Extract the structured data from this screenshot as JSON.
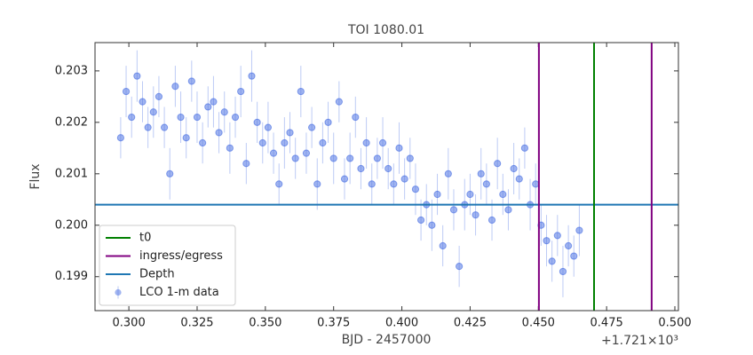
{
  "chart_data": {
    "type": "scatter",
    "title": "TOI 1080.01",
    "xlabel": "BJD - 2457000",
    "ylabel": "Flux",
    "x_offset_label": "+1.721×10³",
    "xlim": [
      0.2876,
      0.5013
    ],
    "xticks": [
      {
        "value": 0.3,
        "label": "0.300"
      },
      0.325,
      {
        "value": 0.35,
        "label": "0.350"
      },
      0.375,
      {
        "value": 0.4,
        "label": "0.400"
      },
      0.425,
      {
        "value": 0.45,
        "label": "0.450"
      },
      0.475,
      {
        "value": 0.5,
        "label": "0.500"
      }
    ],
    "ylim": [
      0.19834,
      0.20355
    ],
    "yticks": [
      0.199,
      {
        "value": 0.2,
        "label": "0.200"
      },
      0.201,
      0.202,
      0.203
    ],
    "legend": "lower left",
    "vlines": [
      {
        "name": "t0",
        "color": "#008000",
        "x": [
          0.4704
        ]
      },
      {
        "name": "ingress/egress",
        "color": "#800080",
        "x": [
          0.4502,
          0.4915
        ]
      }
    ],
    "hlines": [
      {
        "name": "Depth",
        "color": "#1f77b4",
        "y": [
          0.2004
        ]
      }
    ],
    "series": [
      {
        "name": "LCO 1-m data",
        "color": "#4169e1",
        "x": [
          0.297,
          0.299,
          0.301,
          0.303,
          0.305,
          0.307,
          0.309,
          0.311,
          0.313,
          0.315,
          0.317,
          0.319,
          0.321,
          0.323,
          0.325,
          0.327,
          0.329,
          0.331,
          0.333,
          0.335,
          0.337,
          0.339,
          0.341,
          0.343,
          0.345,
          0.347,
          0.349,
          0.351,
          0.353,
          0.355,
          0.357,
          0.359,
          0.361,
          0.363,
          0.365,
          0.367,
          0.369,
          0.371,
          0.373,
          0.375,
          0.377,
          0.379,
          0.381,
          0.383,
          0.385,
          0.387,
          0.389,
          0.391,
          0.393,
          0.395,
          0.397,
          0.399,
          0.401,
          0.403,
          0.405,
          0.407,
          0.409,
          0.411,
          0.413,
          0.415,
          0.417,
          0.419,
          0.421,
          0.423,
          0.425,
          0.427,
          0.429,
          0.431,
          0.433,
          0.435,
          0.437,
          0.439,
          0.441,
          0.443,
          0.445,
          0.447,
          0.449,
          0.451,
          0.453,
          0.455,
          0.457,
          0.459,
          0.461,
          0.463,
          0.465
        ],
        "y": [
          0.2017,
          0.2026,
          0.2021,
          0.2029,
          0.2024,
          0.2019,
          0.2022,
          0.2025,
          0.2019,
          0.201,
          0.2027,
          0.2021,
          0.2017,
          0.2028,
          0.2021,
          0.2016,
          0.2023,
          0.2024,
          0.2018,
          0.2022,
          0.2015,
          0.2021,
          0.2026,
          0.2012,
          0.2029,
          0.202,
          0.2016,
          0.2019,
          0.2014,
          0.2008,
          0.2016,
          0.2018,
          0.2013,
          0.2026,
          0.2014,
          0.2019,
          0.2008,
          0.2016,
          0.202,
          0.2013,
          0.2024,
          0.2009,
          0.2013,
          0.2021,
          0.2011,
          0.2016,
          0.2008,
          0.2013,
          0.2016,
          0.2011,
          0.2008,
          0.2015,
          0.2009,
          0.2013,
          0.2007,
          0.2001,
          0.2004,
          0.2,
          0.2006,
          0.1996,
          0.201,
          0.2003,
          0.1992,
          0.2004,
          0.2006,
          0.2002,
          0.201,
          0.2008,
          0.2001,
          0.2012,
          0.2006,
          0.2003,
          0.2011,
          0.2009,
          0.2015,
          0.2004,
          0.2008,
          0.2,
          0.1997,
          0.1993,
          0.1998,
          0.1991,
          0.1996,
          0.1994,
          0.1999
        ],
        "yerr": [
          0.0004,
          0.0005,
          0.0004,
          0.0005,
          0.0004,
          0.0004,
          0.0005,
          0.0004,
          0.0004,
          0.0005,
          0.0004,
          0.0005,
          0.0004,
          0.0004,
          0.0005,
          0.0004,
          0.0004,
          0.0005,
          0.0004,
          0.0004,
          0.0005,
          0.0004,
          0.0005,
          0.0004,
          0.0005,
          0.0004,
          0.0004,
          0.0005,
          0.0004,
          0.0004,
          0.0005,
          0.0004,
          0.0004,
          0.0005,
          0.0004,
          0.0004,
          0.0005,
          0.0004,
          0.0004,
          0.0005,
          0.0004,
          0.0004,
          0.0005,
          0.0004,
          0.0004,
          0.0005,
          0.0004,
          0.0004,
          0.0005,
          0.0004,
          0.0004,
          0.0005,
          0.0004,
          0.0004,
          0.0005,
          0.0004,
          0.0004,
          0.0005,
          0.0004,
          0.0004,
          0.0005,
          0.0004,
          0.0004,
          0.0005,
          0.0004,
          0.0004,
          0.0005,
          0.0004,
          0.0004,
          0.0005,
          0.0004,
          0.0004,
          0.0005,
          0.0004,
          0.0004,
          0.0005,
          0.0004,
          0.0004,
          0.0005,
          0.0004,
          0.0004,
          0.0005,
          0.0004,
          0.0004,
          0.0005
        ]
      }
    ]
  }
}
